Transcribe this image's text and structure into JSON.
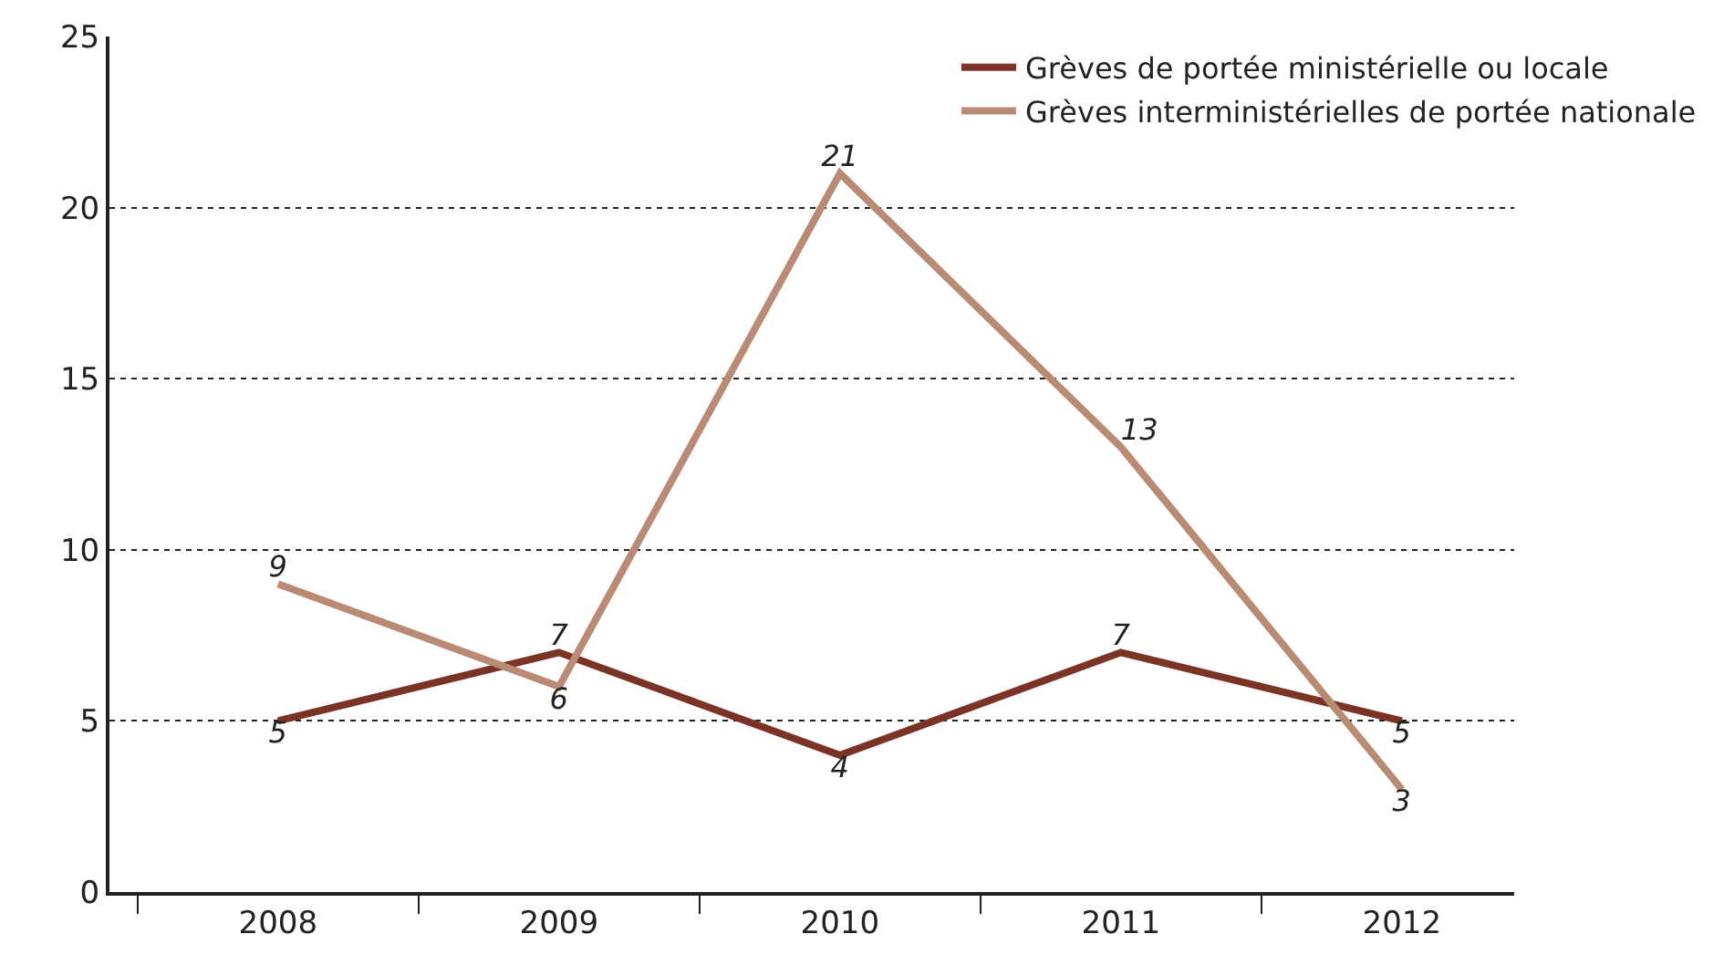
{
  "chart_data": {
    "type": "line",
    "categories": [
      "2008",
      "2009",
      "2010",
      "2011",
      "2012"
    ],
    "series": [
      {
        "name": "Grèves de portée ministérielle ou locale",
        "color": "#7a3324",
        "values": [
          5,
          7,
          4,
          7,
          5
        ]
      },
      {
        "name": "Grèves interministérielles de portée nationale",
        "color": "#b98b74",
        "values": [
          9,
          6,
          21,
          13,
          3
        ]
      }
    ],
    "ylim": [
      0,
      25
    ],
    "yticks": [
      0,
      5,
      10,
      15,
      20,
      25
    ],
    "grid": "y",
    "legend": "top right",
    "data_labels": true,
    "marker": "none",
    "line_style": "solid"
  }
}
